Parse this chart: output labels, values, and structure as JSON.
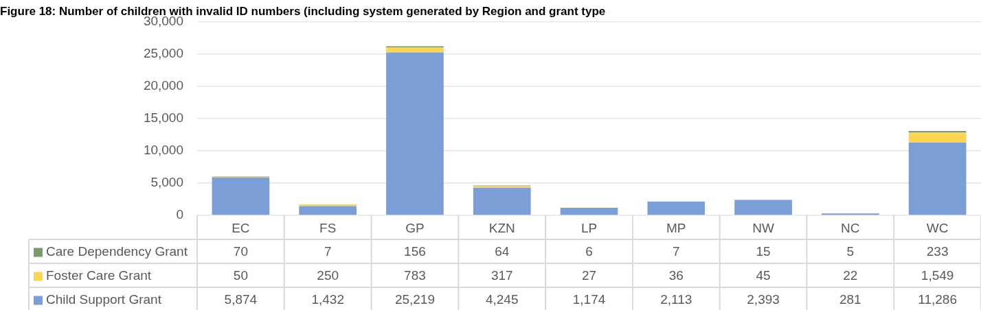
{
  "chart_data": {
    "type": "bar",
    "title": "Figure 18: Number of children with invalid ID numbers (including system generated by Region and grant type",
    "categories": [
      "EC",
      "FS",
      "GP",
      "KZN",
      "LP",
      "MP",
      "NW",
      "NC",
      "WC"
    ],
    "stacked": true,
    "series": [
      {
        "name": "Child Support Grant",
        "color": "#7b9ed6",
        "values": [
          5874,
          1432,
          25219,
          4245,
          1174,
          2113,
          2393,
          281,
          11286
        ],
        "value_labels": [
          "5,874",
          "1,432",
          "25,219",
          "4,245",
          "1,174",
          "2,113",
          "2,393",
          "281",
          "11,286"
        ]
      },
      {
        "name": "Foster Care Grant",
        "color": "#ffd54f",
        "values": [
          50,
          250,
          783,
          317,
          27,
          36,
          45,
          22,
          1549
        ],
        "value_labels": [
          "50",
          "250",
          "783",
          "317",
          "27",
          "36",
          "45",
          "22",
          "1,549"
        ]
      },
      {
        "name": "Care Dependency Grant",
        "color": "#7a9a6a",
        "values": [
          70,
          7,
          156,
          64,
          6,
          7,
          15,
          5,
          233
        ],
        "value_labels": [
          "70",
          "7",
          "156",
          "64",
          "6",
          "7",
          "15",
          "5",
          "233"
        ]
      }
    ],
    "ylim": [
      0,
      30000
    ],
    "yticks": [
      {
        "value": 0,
        "label": "0"
      },
      {
        "value": 5000,
        "label": "5,000"
      },
      {
        "value": 10000,
        "label": "10,000"
      },
      {
        "value": 15000,
        "label": "15,000"
      },
      {
        "value": 20000,
        "label": "20,000"
      },
      {
        "value": 25000,
        "label": "25,000"
      },
      {
        "value": 30000,
        "label": "30,000"
      }
    ],
    "grid": "y",
    "legend": "bottom left"
  }
}
